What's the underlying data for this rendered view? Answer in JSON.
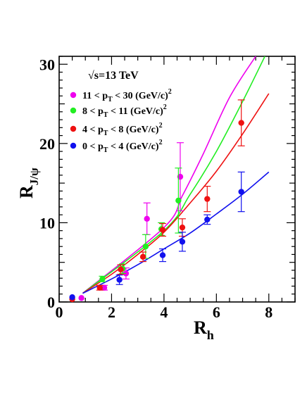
{
  "chart_data": {
    "type": "scatter",
    "energy_label": "√s=13 TeV",
    "xlabel": {
      "main": "R",
      "sub": "h"
    },
    "ylabel": {
      "main": "R",
      "sub": "J/ψ"
    },
    "xlim": [
      0,
      9
    ],
    "ylim": [
      0,
      31
    ],
    "x_ticks": [
      0,
      2,
      4,
      6,
      8
    ],
    "y_ticks": [
      0,
      10,
      20,
      30
    ],
    "grid": false,
    "legend_position": "top-left",
    "series": [
      {
        "name": "11 < pT < 30 (GeV/c)2",
        "legend_parts": [
          "11 < p",
          "T",
          " < 30  (GeV/c)",
          "2"
        ],
        "color": "#ee00ee",
        "points": [
          {
            "x": 0.85,
            "y": 0.5,
            "err": 0.0
          },
          {
            "x": 1.72,
            "y": 1.8,
            "err": 0.3
          },
          {
            "x": 2.55,
            "y": 3.6,
            "err": 0.7
          },
          {
            "x": 3.35,
            "y": 10.5,
            "err": 2.0
          },
          {
            "x": 4.62,
            "y": 15.8,
            "err": 4.3
          }
        ],
        "fit": {
          "x": [
            0.9,
            4.0,
            4.7,
            5.5,
            6.5,
            7.5
          ],
          "y": [
            1.1,
            9.4,
            13.4,
            18.7,
            25.8,
            31.0
          ]
        }
      },
      {
        "name": "8 < pT < 11 (GeV/c)2",
        "legend_parts": [
          "8 < p",
          "T",
          " < 11  (GeV/c)",
          "2"
        ],
        "color": "#22ee22",
        "points": [
          {
            "x": 1.65,
            "y": 2.9,
            "err": 0.35
          },
          {
            "x": 2.42,
            "y": 4.2,
            "err": 0.6
          },
          {
            "x": 3.3,
            "y": 7.0,
            "err": 1.5
          },
          {
            "x": 3.9,
            "y": 9.2,
            "err": 0.8
          },
          {
            "x": 4.55,
            "y": 12.8,
            "err": 4.1
          }
        ],
        "fit": {
          "x": [
            0.9,
            4.0,
            5.0,
            6.0,
            7.0,
            7.85
          ],
          "y": [
            1.1,
            9.0,
            13.6,
            19.0,
            25.3,
            31.0
          ]
        }
      },
      {
        "name": "4 < pT < 8 (GeV/c)2",
        "legend_parts": [
          "4 < p",
          "T",
          " < 8   (GeV/c)",
          "2"
        ],
        "color": "#ee1111",
        "points": [
          {
            "x": 0.5,
            "y": 0.35,
            "err": 0.0
          },
          {
            "x": 1.55,
            "y": 1.8,
            "err": 0.3
          },
          {
            "x": 2.35,
            "y": 4.1,
            "err": 0.6
          },
          {
            "x": 3.2,
            "y": 5.7,
            "err": 0.6
          },
          {
            "x": 3.95,
            "y": 9.1,
            "err": 0.8
          },
          {
            "x": 4.7,
            "y": 9.4,
            "err": 1.1
          },
          {
            "x": 5.65,
            "y": 13.0,
            "err": 1.6
          },
          {
            "x": 6.95,
            "y": 22.6,
            "err": 2.9
          }
        ],
        "fit": {
          "x": [
            0.9,
            2.0,
            3.0,
            4.0,
            5.0,
            6.0,
            7.0,
            8.0
          ],
          "y": [
            1.1,
            3.5,
            6.0,
            8.8,
            12.5,
            16.5,
            21.2,
            26.3
          ]
        }
      },
      {
        "name": "0 < pT < 4 (GeV/c)2",
        "legend_parts": [
          "0 < p",
          "T",
          " < 4   (GeV/c)",
          "2"
        ],
        "color": "#1111ee",
        "points": [
          {
            "x": 0.5,
            "y": 0.6,
            "err": 0.0
          },
          {
            "x": 2.3,
            "y": 2.8,
            "err": 0.6
          },
          {
            "x": 3.95,
            "y": 5.9,
            "err": 0.8
          },
          {
            "x": 4.7,
            "y": 7.6,
            "err": 1.2
          },
          {
            "x": 5.65,
            "y": 10.4,
            "err": 0.6
          },
          {
            "x": 6.95,
            "y": 13.9,
            "err": 2.5
          }
        ],
        "fit": {
          "x": [
            0.9,
            2.0,
            3.0,
            4.0,
            5.0,
            6.0,
            7.0,
            8.0
          ],
          "y": [
            1.1,
            2.9,
            4.7,
            6.7,
            8.7,
            11.1,
            13.6,
            16.4
          ]
        }
      }
    ]
  }
}
